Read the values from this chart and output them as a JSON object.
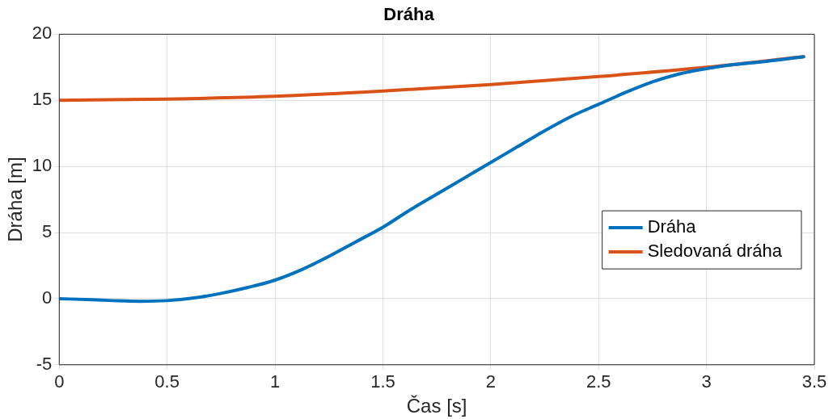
{
  "chart_data": {
    "type": "line",
    "title": "Dráha",
    "xlabel": "Čas [s]",
    "ylabel": "Dráha [m]",
    "xlim": [
      0,
      3.5
    ],
    "xticks": [
      0,
      0.5,
      1,
      1.5,
      2,
      2.5,
      3,
      3.5
    ],
    "ylim": [
      -5,
      20
    ],
    "yticks": [
      -5,
      0,
      5,
      10,
      15,
      20
    ],
    "grid": true,
    "legend": "right",
    "marker": "none",
    "line_style": "solid",
    "series": [
      {
        "name": "Dráha",
        "color": "#0072bd",
        "x": [
          0,
          0.125,
          0.25,
          0.375,
          0.5,
          0.625,
          0.75,
          0.875,
          1,
          1.125,
          1.25,
          1.375,
          1.5,
          1.625,
          1.75,
          1.875,
          2,
          2.125,
          2.25,
          2.375,
          2.5,
          2.625,
          2.75,
          2.875,
          3,
          3.125,
          3.25,
          3.45
        ],
        "values": [
          0,
          -0.07,
          -0.15,
          -0.2,
          -0.15,
          0.05,
          0.4,
          0.85,
          1.4,
          2.2,
          3.2,
          4.3,
          5.4,
          6.7,
          7.9,
          9.1,
          10.3,
          11.5,
          12.7,
          13.8,
          14.7,
          15.6,
          16.4,
          17.0,
          17.4,
          17.7,
          17.9,
          18.3
        ]
      },
      {
        "name": "Sledovaná dráha",
        "color": "#d95319",
        "x": [
          0,
          0.5,
          1,
          1.5,
          2,
          2.5,
          3,
          3.45
        ],
        "values": [
          15.0,
          15.1,
          15.3,
          15.7,
          16.2,
          16.8,
          17.5,
          18.3
        ]
      }
    ]
  }
}
